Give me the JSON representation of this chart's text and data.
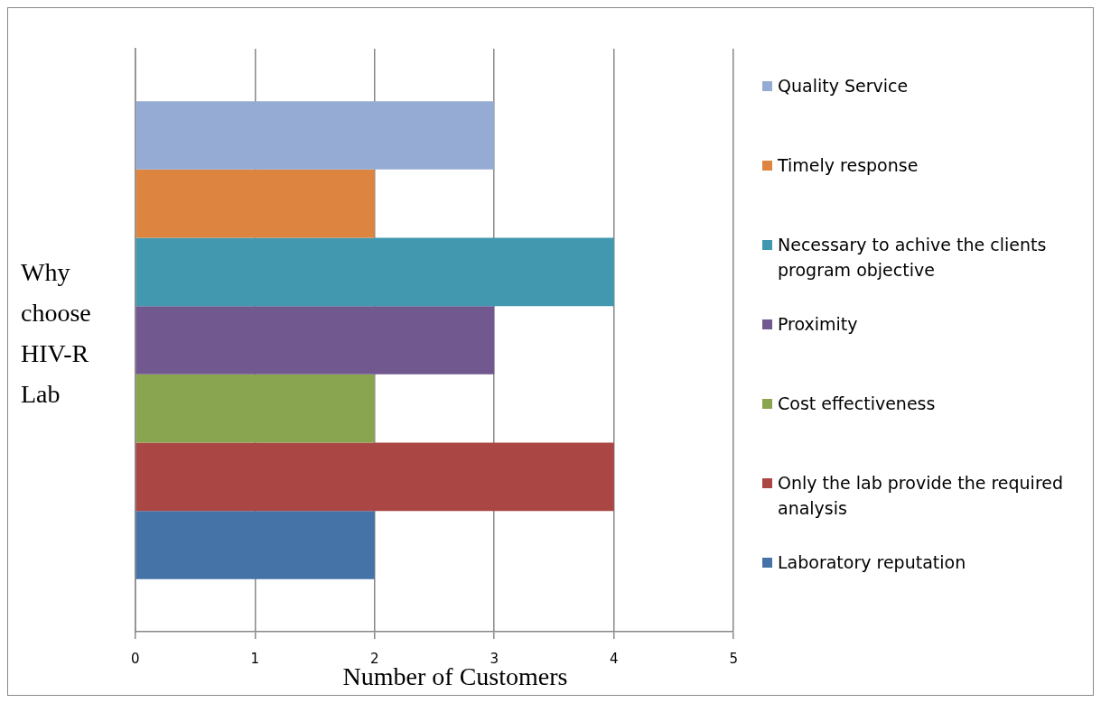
{
  "chart_data": {
    "type": "bar",
    "orientation": "horizontal",
    "xlabel": "Number of Customers",
    "ylabel": "Why choose HIV-R Lab",
    "categories": [
      null
    ],
    "xlim": [
      0,
      5
    ],
    "xticks": [
      0,
      1,
      2,
      3,
      4,
      5
    ],
    "grid": "x",
    "legend": "right",
    "series": [
      {
        "name": "Quality Service",
        "color": "#95abd4",
        "values": [
          3
        ]
      },
      {
        "name": "Timely response",
        "color": "#dd8540",
        "values": [
          2
        ]
      },
      {
        "name": "Necessary to achive the clients program objective",
        "color": "#4198af",
        "values": [
          4
        ]
      },
      {
        "name": "Proximity",
        "color": "#71588f",
        "values": [
          3
        ]
      },
      {
        "name": "Cost effectiveness",
        "color": "#8aa54f",
        "values": [
          2
        ]
      },
      {
        "name": "Only the lab provide the required analysis",
        "color": "#aa4643",
        "values": [
          4
        ]
      },
      {
        "name": "Laboratory reputation",
        "color": "#4572a7",
        "values": [
          2
        ]
      }
    ]
  }
}
